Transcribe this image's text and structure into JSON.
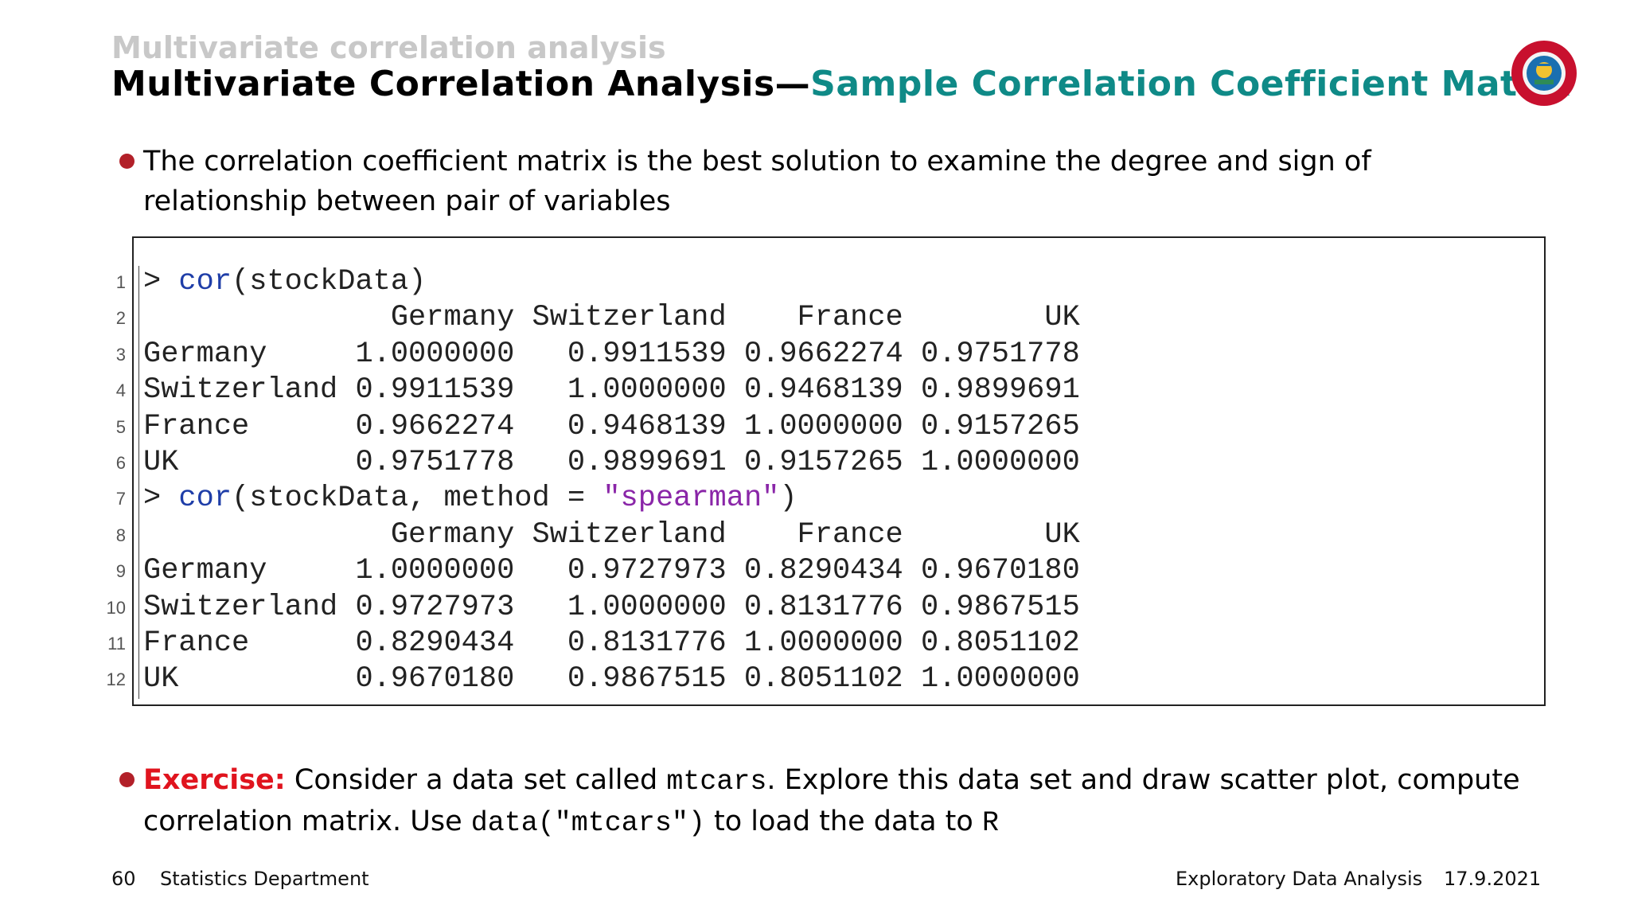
{
  "header": {
    "section": "Multivariate correlation analysis",
    "title_main": "Multivariate Correlation Analysis—",
    "title_sub": "Sample Correlation Coefficient Matrix"
  },
  "colors": {
    "accent": "#0f8a87",
    "bullet": "#b22029",
    "exercise": "#e0141e"
  },
  "bullet1": "The correlation coefficient matrix is the best solution to examine the degree and sign of relationship between pair of variables",
  "code": [
    {
      "n": "1",
      "parts": [
        [
          "p",
          "> "
        ],
        [
          "kw",
          "cor"
        ],
        [
          "p",
          "(stockData)"
        ]
      ]
    },
    {
      "n": "2",
      "parts": [
        [
          "p",
          "              Germany Switzerland    France        UK"
        ]
      ]
    },
    {
      "n": "3",
      "parts": [
        [
          "p",
          "Germany     1.0000000   0.9911539 0.9662274 0.9751778"
        ]
      ]
    },
    {
      "n": "4",
      "parts": [
        [
          "p",
          "Switzerland 0.9911539   1.0000000 0.9468139 0.9899691"
        ]
      ]
    },
    {
      "n": "5",
      "parts": [
        [
          "p",
          "France      0.9662274   0.9468139 1.0000000 0.9157265"
        ]
      ]
    },
    {
      "n": "6",
      "parts": [
        [
          "p",
          "UK          0.9751778   0.9899691 0.9157265 1.0000000"
        ]
      ]
    },
    {
      "n": "7",
      "parts": [
        [
          "p",
          "> "
        ],
        [
          "kw",
          "cor"
        ],
        [
          "p",
          "(stockData, method = "
        ],
        [
          "str",
          "\"spearman\""
        ],
        [
          "p",
          ")"
        ]
      ]
    },
    {
      "n": "8",
      "parts": [
        [
          "p",
          "              Germany Switzerland    France        UK"
        ]
      ]
    },
    {
      "n": "9",
      "parts": [
        [
          "p",
          "Germany     1.0000000   0.9727973 0.8290434 0.9670180"
        ]
      ]
    },
    {
      "n": "10",
      "parts": [
        [
          "p",
          "Switzerland 0.9727973   1.0000000 0.8131776 0.9867515"
        ]
      ]
    },
    {
      "n": "11",
      "parts": [
        [
          "p",
          "France      0.8290434   0.8131776 1.0000000 0.8051102"
        ]
      ]
    },
    {
      "n": "12",
      "parts": [
        [
          "p",
          "UK          0.9670180   0.9867515 0.8051102 1.0000000"
        ]
      ]
    }
  ],
  "exercise": {
    "label": "Exercise:",
    "t1": " Consider a data set called ",
    "c1": "mtcars",
    "t2": ". Explore this data set and draw scatter plot, compute correlation matrix. Use ",
    "c2": "data(\"mtcars\")",
    "t3": " to load the data to ",
    "c3": "R"
  },
  "footer": {
    "page": "60",
    "dept": "Statistics Department",
    "course": "Exploratory Data Analysis",
    "date": "17.9.2021"
  }
}
